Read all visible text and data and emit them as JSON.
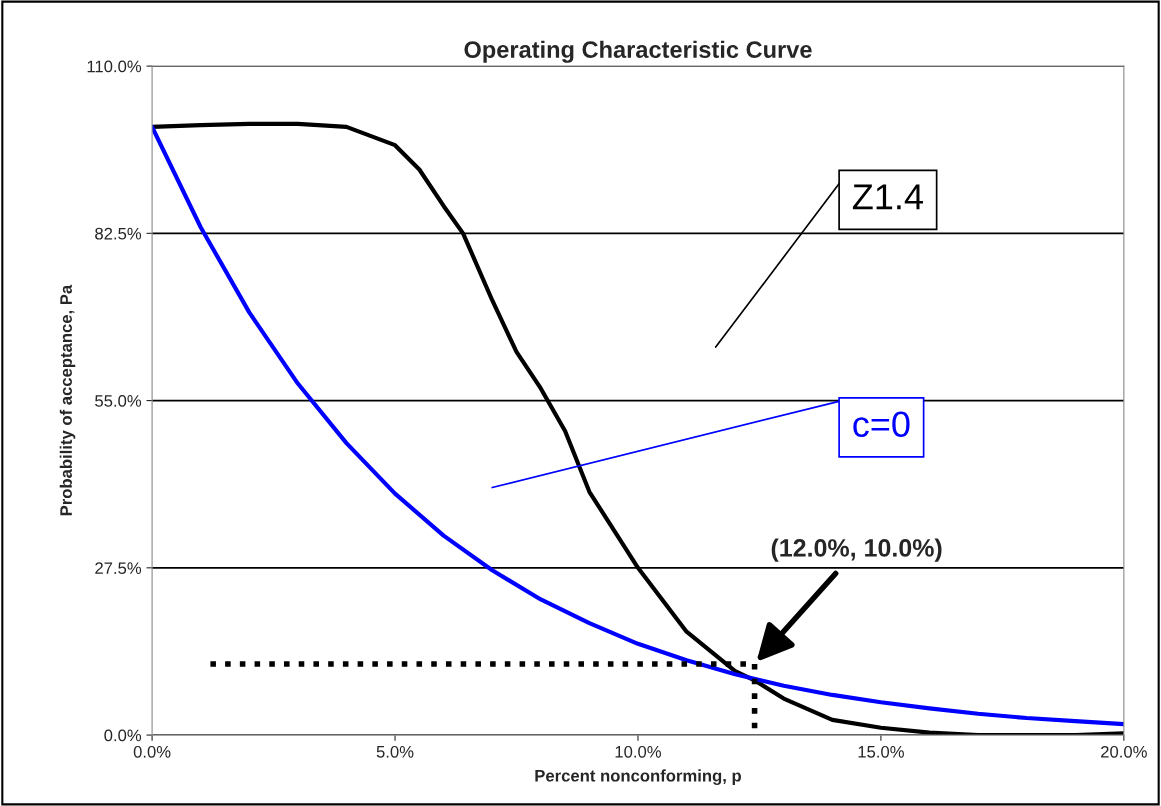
{
  "chart_data": {
    "type": "line",
    "title": "Operating Characteristic Curve",
    "xlabel": "Percent nonconforming, p",
    "ylabel": "Probability of acceptance, Pa",
    "xlim": [
      0,
      20
    ],
    "xticks": [
      {
        "value": 0,
        "label": "0.0%"
      },
      {
        "value": 5,
        "label": "5.0%"
      },
      {
        "value": 10,
        "label": "10.0%"
      },
      {
        "value": 15,
        "label": "15.0%"
      },
      {
        "value": 20,
        "label": "20.0%"
      }
    ],
    "ylim": [
      0,
      110
    ],
    "yticks": [
      {
        "value": 0,
        "label": "0.0%"
      },
      {
        "value": 27.5,
        "label": "27.5%"
      },
      {
        "value": 55,
        "label": "55.0%"
      },
      {
        "value": 82.5,
        "label": "82.5%"
      },
      {
        "value": 110,
        "label": "110.0%"
      }
    ],
    "grid": "y",
    "legend": false,
    "marker": "none",
    "series": [
      {
        "name": "Z1.4",
        "color": "#000000",
        "line_style": "solid",
        "x": [
          0,
          1,
          2,
          3,
          4,
          5,
          5.5,
          6,
          6.4,
          7,
          7.5,
          8,
          8.5,
          9,
          10,
          11,
          12,
          12.4,
          13,
          14,
          15,
          16,
          17,
          18,
          19,
          20
        ],
        "values": [
          100,
          100.3,
          100.5,
          100.5,
          100,
          97,
          93,
          87,
          82.5,
          71.5,
          63,
          57,
          50,
          40,
          27.5,
          17,
          10.5,
          9,
          6,
          2.5,
          1.2,
          0.4,
          0,
          0,
          0,
          0.3
        ]
      },
      {
        "name": "c=0",
        "color": "#0000ff",
        "line_style": "solid",
        "x": [
          0,
          1,
          2,
          3,
          4,
          5,
          6,
          7,
          8,
          9,
          10,
          11,
          12,
          13,
          14,
          15,
          16,
          17,
          18,
          19,
          20
        ],
        "values": [
          100,
          83.5,
          69.5,
          57.8,
          48,
          39.7,
          32.8,
          27.1,
          22.3,
          18.4,
          15,
          12.3,
          10,
          8.1,
          6.6,
          5.4,
          4.4,
          3.5,
          2.8,
          2.3,
          1.8
        ]
      },
      {
        "color": "#000000",
        "line_style": "dotted",
        "x": [
          1.2,
          12.4
        ],
        "values": [
          11.7,
          11.7
        ]
      },
      {
        "color": "#000000",
        "line_style": "dotted",
        "x": [
          12.4,
          12.4
        ],
        "values": [
          11.7,
          0
        ]
      }
    ],
    "annotations": [
      {
        "text": "(12.0%, 10.0%)",
        "x": 12.4,
        "y": 11.7
      }
    ]
  }
}
